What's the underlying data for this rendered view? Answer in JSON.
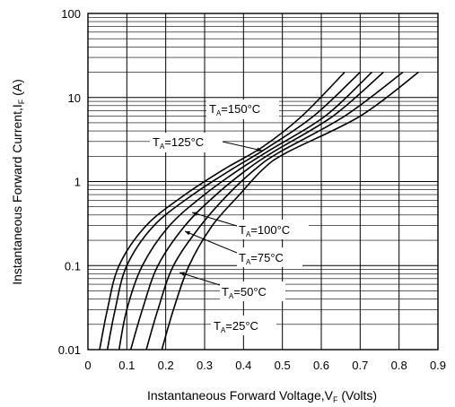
{
  "chart_data": {
    "type": "line",
    "title": "",
    "xlabel": "Instantaneous Forward Voltage,V",
    "xlabel_sub": "F",
    "xlabel_tail": " (Volts)",
    "ylabel": "Instantaneous Forward Current,I",
    "ylabel_sub": "F",
    "ylabel_tail": " (A)",
    "xlim": [
      0,
      0.9
    ],
    "ylim": [
      0.01,
      100
    ],
    "yscale": "log",
    "grid": true,
    "x_ticks": [
      "0",
      "0.1",
      "0.2",
      "0.3",
      "0.4",
      "0.5",
      "0.6",
      "0.7",
      "0.8",
      "0.9"
    ],
    "y_ticks": [
      "0.01",
      "0.1",
      "1",
      "10",
      "100"
    ],
    "series": [
      {
        "name": "150°C",
        "label_pre": "T",
        "label_sub": "A",
        "label_post": "=150°C",
        "points": [
          [
            0.03,
            0.01
          ],
          [
            0.05,
            0.03
          ],
          [
            0.08,
            0.1
          ],
          [
            0.15,
            0.3
          ],
          [
            0.25,
            0.7
          ],
          [
            0.35,
            1.4
          ],
          [
            0.45,
            2.6
          ],
          [
            0.55,
            6
          ],
          [
            0.66,
            20
          ]
        ]
      },
      {
        "name": "125°C",
        "label_pre": "T",
        "label_sub": "A",
        "label_post": "=125°C",
        "points": [
          [
            0.05,
            0.01
          ],
          [
            0.07,
            0.03
          ],
          [
            0.1,
            0.1
          ],
          [
            0.17,
            0.3
          ],
          [
            0.27,
            0.7
          ],
          [
            0.37,
            1.4
          ],
          [
            0.46,
            2.5
          ],
          [
            0.58,
            6
          ],
          [
            0.7,
            20
          ]
        ]
      },
      {
        "name": "100°C",
        "label_pre": "T",
        "label_sub": "A",
        "label_post": "=100°C",
        "points": [
          [
            0.08,
            0.01
          ],
          [
            0.1,
            0.03
          ],
          [
            0.14,
            0.1
          ],
          [
            0.21,
            0.3
          ],
          [
            0.3,
            0.7
          ],
          [
            0.39,
            1.4
          ],
          [
            0.47,
            2.4
          ],
          [
            0.61,
            6
          ],
          [
            0.73,
            20
          ]
        ]
      },
      {
        "name": "75°C",
        "label_pre": "T",
        "label_sub": "A",
        "label_post": "=75°C",
        "points": [
          [
            0.11,
            0.01
          ],
          [
            0.14,
            0.03
          ],
          [
            0.18,
            0.1
          ],
          [
            0.25,
            0.3
          ],
          [
            0.33,
            0.7
          ],
          [
            0.41,
            1.4
          ],
          [
            0.48,
            2.3
          ],
          [
            0.63,
            6
          ],
          [
            0.76,
            20
          ]
        ]
      },
      {
        "name": "50°C",
        "label_pre": "T",
        "label_sub": "A",
        "label_post": "=50°C",
        "points": [
          [
            0.15,
            0.01
          ],
          [
            0.18,
            0.03
          ],
          [
            0.22,
            0.1
          ],
          [
            0.29,
            0.3
          ],
          [
            0.36,
            0.7
          ],
          [
            0.43,
            1.4
          ],
          [
            0.49,
            2.2
          ],
          [
            0.66,
            6
          ],
          [
            0.81,
            20
          ]
        ]
      },
      {
        "name": "25°C",
        "label_pre": "T",
        "label_sub": "A",
        "label_post": "=25°C",
        "points": [
          [
            0.19,
            0.01
          ],
          [
            0.22,
            0.03
          ],
          [
            0.26,
            0.1
          ],
          [
            0.32,
            0.3
          ],
          [
            0.39,
            0.7
          ],
          [
            0.45,
            1.4
          ],
          [
            0.51,
            2.2
          ],
          [
            0.7,
            6
          ],
          [
            0.85,
            20
          ]
        ]
      }
    ]
  }
}
